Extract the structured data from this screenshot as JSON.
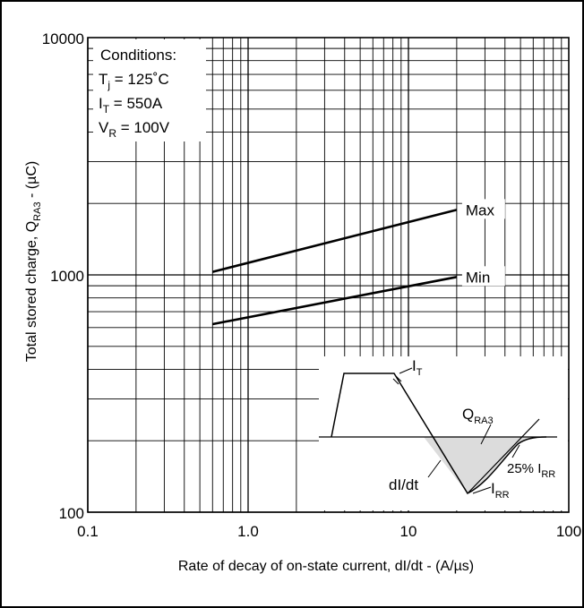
{
  "chart_data": {
    "type": "line",
    "xscale": "log",
    "yscale": "log",
    "xlim": [
      0.1,
      100
    ],
    "ylim": [
      100,
      10000
    ],
    "xlabel": "Rate of decay of on-state current, dI/dt - (A/µs)",
    "ylabel": {
      "prefix": "Total stored charge, Q",
      "sub": "RA3",
      "suffix": " - (µC)"
    },
    "x_ticks": [
      {
        "value": 0.1,
        "label": "0.1"
      },
      {
        "value": 1,
        "label": "1.0"
      },
      {
        "value": 10,
        "label": "10"
      },
      {
        "value": 100,
        "label": "100"
      }
    ],
    "y_ticks": [
      {
        "value": 100,
        "label": "100"
      },
      {
        "value": 1000,
        "label": "1000"
      },
      {
        "value": 10000,
        "label": "10000"
      }
    ],
    "grid": true,
    "series": [
      {
        "name": "Max",
        "x": [
          0.6,
          20
        ],
        "y": [
          1030,
          1880
        ]
      },
      {
        "name": "Min",
        "x": [
          0.6,
          20
        ],
        "y": [
          620,
          980
        ]
      }
    ],
    "conditions": {
      "title": "Conditions:",
      "lines": [
        {
          "sym": "T",
          "sub": "j",
          "rest": " = 125˚C"
        },
        {
          "sym": "I",
          "sub": "T",
          "rest": " = 550A"
        },
        {
          "sym": "V",
          "sub": "R",
          "rest": " = 100V"
        }
      ]
    },
    "inset": {
      "it_label": {
        "sym": "I",
        "sub": "T"
      },
      "q_label": {
        "sym": "Q",
        "sub": "RA3"
      },
      "didt_label": "dI/dt",
      "irr_label": {
        "sym": "I",
        "sub": "RR"
      },
      "pct_label": {
        "pre": "25% I",
        "sub": "RR"
      }
    }
  }
}
